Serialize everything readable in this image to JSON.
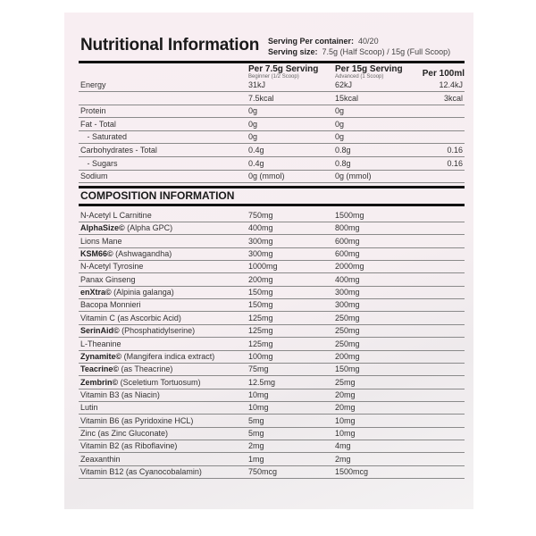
{
  "title": "Nutritional Information",
  "serving": {
    "per_container_label": "Serving Per container:",
    "per_container_value": "40/20",
    "size_label": "Serving size:",
    "size_value": "7.5g (Half Scoop) / 15g (Full Scoop)"
  },
  "columns": [
    {
      "label": "Per 7.5g Serving",
      "sub": "Beginner (1/2 Scoop)"
    },
    {
      "label": "Per 15g Serving",
      "sub": "Advanced (1 Scoop)"
    },
    {
      "label": "Per 100ml",
      "sub": ""
    }
  ],
  "nutrition": [
    {
      "name": "Energy",
      "v1": "31kJ",
      "v2": "62kJ",
      "v3": "12.4kJ"
    },
    {
      "name": "",
      "v1": "7.5kcal",
      "v2": "15kcal",
      "v3": "3kcal"
    },
    {
      "name": "Protein",
      "v1": "0g",
      "v2": "0g",
      "v3": ""
    },
    {
      "name": "Fat - Total",
      "v1": "0g",
      "v2": "0g",
      "v3": ""
    },
    {
      "name": "   - Saturated",
      "v1": "0g",
      "v2": "0g",
      "v3": ""
    },
    {
      "name": "Carbohydrates - Total",
      "v1": "0.4g",
      "v2": "0.8g",
      "v3": "0.16"
    },
    {
      "name": "   - Sugars",
      "v1": "0.4g",
      "v2": "0.8g",
      "v3": "0.16"
    },
    {
      "name": "Sodium",
      "v1": "0g (mmol)",
      "v2": "0g (mmol)",
      "v3": ""
    }
  ],
  "composition_title": "COMPOSITION INFORMATION",
  "composition": [
    {
      "brand": "",
      "name": "N-Acetyl L Carnitine",
      "v1": "750mg",
      "v2": "1500mg"
    },
    {
      "brand": "AlphaSize©",
      "name": " (Alpha GPC)",
      "v1": "400mg",
      "v2": "800mg"
    },
    {
      "brand": "",
      "name": "Lions Mane",
      "v1": "300mg",
      "v2": "600mg"
    },
    {
      "brand": "KSM66©",
      "name": " (Ashwagandha)",
      "v1": "300mg",
      "v2": "600mg"
    },
    {
      "brand": "",
      "name": "N-Acetyl Tyrosine",
      "v1": "1000mg",
      "v2": "2000mg"
    },
    {
      "brand": "",
      "name": "Panax Ginseng",
      "v1": "200mg",
      "v2": "400mg"
    },
    {
      "brand": "enXtra©",
      "name": " (Alpinia galanga)",
      "v1": "150mg",
      "v2": "300mg"
    },
    {
      "brand": "",
      "name": "Bacopa Monnieri",
      "v1": "150mg",
      "v2": "300mg"
    },
    {
      "brand": "",
      "name": "Vitamin C (as Ascorbic Acid)",
      "v1": "125mg",
      "v2": "250mg"
    },
    {
      "brand": "SerinAid©",
      "name": " (Phosphatidylserine)",
      "v1": "125mg",
      "v2": "250mg"
    },
    {
      "brand": "",
      "name": "L-Theanine",
      "v1": "125mg",
      "v2": "250mg"
    },
    {
      "brand": "Zynamite©",
      "name": " (Mangifera indica extract)",
      "v1": "100mg",
      "v2": "200mg"
    },
    {
      "brand": "Teacrine©",
      "name": " (as Theacrine)",
      "v1": "75mg",
      "v2": "150mg"
    },
    {
      "brand": "Zembrin©",
      "name": " (Sceletium Tortuosum)",
      "v1": "12.5mg",
      "v2": "25mg"
    },
    {
      "brand": "",
      "name": "Vitamin B3 (as Niacin)",
      "v1": "10mg",
      "v2": "20mg"
    },
    {
      "brand": "",
      "name": "Lutin",
      "v1": "10mg",
      "v2": "20mg"
    },
    {
      "brand": "",
      "name": "Vitamin B6 (as Pyridoxine HCL)",
      "v1": "5mg",
      "v2": "10mg"
    },
    {
      "brand": "",
      "name": "Zinc (as Zinc Gluconate)",
      "v1": "5mg",
      "v2": "10mg"
    },
    {
      "brand": "",
      "name": "Vitamin B2 (as Riboflavine)",
      "v1": "2mg",
      "v2": "4mg"
    },
    {
      "brand": "",
      "name": "Zeaxanthin",
      "v1": "1mg",
      "v2": "2mg"
    },
    {
      "brand": "",
      "name": "Vitamin B12 (as Cyanocobalamin)",
      "v1": "750mcg",
      "v2": "1500mcg"
    }
  ],
  "colors": {
    "panel_background": "#f7eef1",
    "rule": "#111111"
  }
}
